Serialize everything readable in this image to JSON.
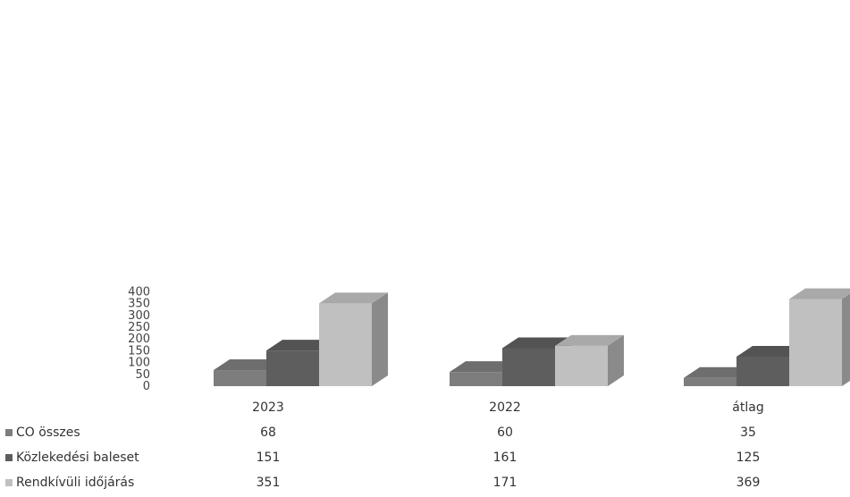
{
  "colors": {
    "CO összes": "#7d7d7d",
    "Közlekedési baleset": "#5e5e5e",
    "Rendkívüli időjárás": "#c0c0c0"
  },
  "chart_data": {
    "type": "bar",
    "title": "",
    "xlabel": "",
    "ylabel": "",
    "ylim": [
      0,
      400
    ],
    "yticks": [
      0,
      50,
      100,
      150,
      200,
      250,
      300,
      350,
      400
    ],
    "grid": false,
    "categories": [
      "2023",
      "2022",
      "átlag"
    ],
    "series": [
      {
        "name": "CO összes",
        "values": [
          68,
          60,
          35
        ]
      },
      {
        "name": "Közlekedési baleset",
        "values": [
          151,
          161,
          125
        ]
      },
      {
        "name": "Rendkívüli időjárás",
        "values": [
          351,
          171,
          369
        ]
      }
    ],
    "legend": "data-table-left"
  }
}
